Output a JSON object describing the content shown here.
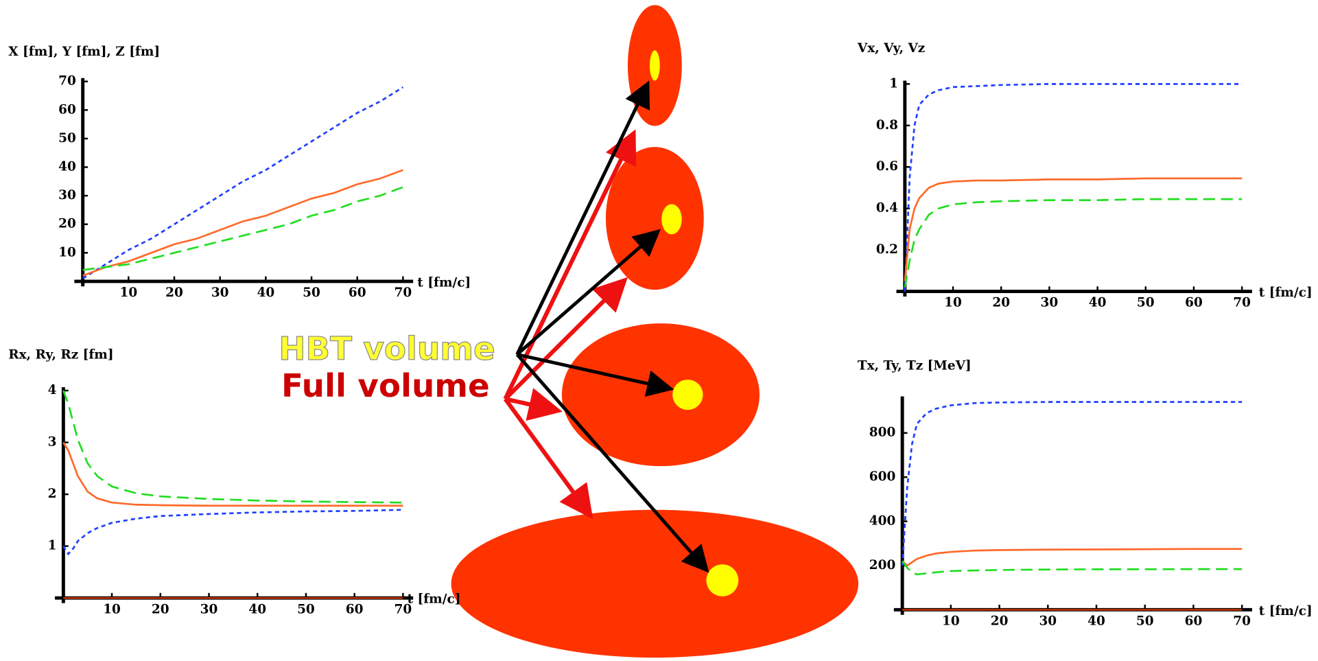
{
  "chart_data": [
    {
      "type": "line",
      "title": "X [fm],  Y [fm],  Z [fm]",
      "x_label": "t [fm/c]",
      "x": [
        0,
        5,
        10,
        15,
        20,
        25,
        30,
        35,
        40,
        45,
        50,
        55,
        60,
        65,
        70
      ],
      "xlim": [
        0,
        70
      ],
      "ylim": [
        0,
        70
      ],
      "xticks": [
        10,
        20,
        30,
        40,
        50,
        60,
        70
      ],
      "yticks": [
        10,
        20,
        30,
        40,
        50,
        60,
        70
      ],
      "series": [
        {
          "color": "#1f3fff",
          "values": [
            1,
            6,
            11,
            15,
            20,
            25,
            30,
            35,
            39,
            44,
            49,
            54,
            59,
            63,
            68
          ]
        },
        {
          "color": "#ff6a2a",
          "values": [
            2,
            5,
            7,
            10,
            13,
            15,
            18,
            21,
            23,
            26,
            29,
            31,
            34,
            36,
            39
          ]
        },
        {
          "color": "#22dd22",
          "values": [
            4,
            5,
            6,
            8,
            10,
            12,
            14,
            16,
            18,
            20,
            23,
            25,
            28,
            30,
            33
          ]
        }
      ]
    },
    {
      "type": "line",
      "title": "Rx,  Ry,  Rz [fm]",
      "x_label": "t [fm/c]",
      "x": [
        0,
        1,
        2,
        3,
        5,
        7,
        10,
        15,
        20,
        30,
        40,
        50,
        60,
        70
      ],
      "xlim": [
        0,
        70
      ],
      "ylim": [
        0,
        4
      ],
      "xticks": [
        10,
        20,
        30,
        40,
        50,
        60,
        70
      ],
      "yticks": [
        1,
        2,
        3,
        4
      ],
      "series": [
        {
          "color": "#1f3fff",
          "values": [
            1,
            0.85,
            0.95,
            1.1,
            1.25,
            1.35,
            1.45,
            1.53,
            1.58,
            1.62,
            1.65,
            1.67,
            1.68,
            1.7
          ]
        },
        {
          "color": "#ff6a2a",
          "values": [
            3,
            2.85,
            2.6,
            2.35,
            2.05,
            1.92,
            1.84,
            1.8,
            1.79,
            1.78,
            1.78,
            1.78,
            1.78,
            1.78
          ]
        },
        {
          "color": "#22dd22",
          "values": [
            4,
            3.75,
            3.4,
            3.05,
            2.6,
            2.35,
            2.15,
            2.02,
            1.96,
            1.91,
            1.88,
            1.86,
            1.85,
            1.84
          ]
        },
        {
          "color": "#b83000",
          "values": [
            0,
            0,
            0,
            0,
            0,
            0,
            0,
            0,
            0,
            0,
            0,
            0,
            0,
            0
          ]
        }
      ]
    },
    {
      "type": "line",
      "title": "Vx,  Vy, Vz",
      "x_label": "t [fm/c]",
      "x": [
        0,
        1,
        2,
        3,
        5,
        7,
        10,
        15,
        20,
        30,
        40,
        50,
        60,
        70
      ],
      "xlim": [
        0,
        70
      ],
      "ylim": [
        0,
        1
      ],
      "xticks": [
        10,
        20,
        30,
        40,
        50,
        60,
        70
      ],
      "yticks": [
        0.2,
        0.4,
        0.6,
        0.8,
        1
      ],
      "series": [
        {
          "color": "#1f3fff",
          "values": [
            0,
            0.55,
            0.8,
            0.9,
            0.95,
            0.97,
            0.985,
            0.99,
            0.995,
            1,
            1,
            1,
            1,
            1
          ]
        },
        {
          "color": "#ff6a2a",
          "values": [
            0.05,
            0.3,
            0.4,
            0.45,
            0.5,
            0.52,
            0.53,
            0.535,
            0.535,
            0.54,
            0.54,
            0.545,
            0.545,
            0.545
          ]
        },
        {
          "color": "#22dd22",
          "values": [
            0.02,
            0.15,
            0.25,
            0.3,
            0.37,
            0.4,
            0.42,
            0.43,
            0.435,
            0.44,
            0.44,
            0.445,
            0.445,
            0.445
          ]
        }
      ]
    },
    {
      "type": "line",
      "title": "Tx,  Ty,  Tz [MeV]",
      "x_label": "t [fm/c]",
      "x": [
        0,
        1,
        2,
        3,
        5,
        7,
        10,
        15,
        20,
        30,
        40,
        50,
        60,
        70
      ],
      "xlim": [
        0,
        70
      ],
      "ylim": [
        0,
        950
      ],
      "xticks": [
        10,
        20,
        30,
        40,
        50,
        60,
        70
      ],
      "yticks": [
        200,
        400,
        600,
        800
      ],
      "series": [
        {
          "color": "#1f3fff",
          "values": [
            200,
            550,
            750,
            840,
            890,
            910,
            925,
            935,
            938,
            940,
            940,
            940,
            940,
            940
          ]
        },
        {
          "color": "#ff6a2a",
          "values": [
            220,
            200,
            215,
            230,
            245,
            255,
            262,
            268,
            270,
            272,
            273,
            274,
            275,
            275
          ]
        },
        {
          "color": "#22dd22",
          "values": [
            220,
            190,
            170,
            160,
            165,
            170,
            175,
            178,
            180,
            182,
            183,
            183,
            184,
            184
          ]
        },
        {
          "color": "#b83000",
          "values": [
            0,
            0,
            0,
            0,
            0,
            0,
            0,
            0,
            0,
            0,
            0,
            0,
            0,
            0
          ]
        }
      ]
    }
  ],
  "diagram": {
    "labels": [
      "HBT volume",
      "Full volume"
    ]
  }
}
